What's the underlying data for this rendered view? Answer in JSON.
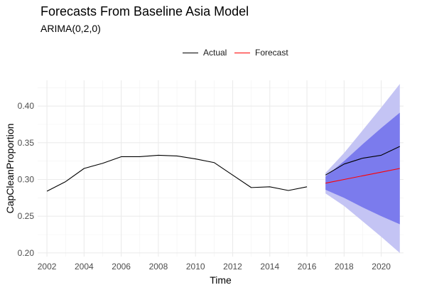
{
  "chart_data": {
    "type": "line",
    "title": "Forecasts From Baseline Asia Model",
    "subtitle": "ARIMA(0,2,0)",
    "xlabel": "Time",
    "ylabel": "CapCleanProportion",
    "xlim": [
      2001.5,
      2021.2
    ],
    "ylim": [
      0.195,
      0.435
    ],
    "x_ticks": [
      2002,
      2004,
      2006,
      2008,
      2010,
      2012,
      2014,
      2016,
      2018,
      2020
    ],
    "y_ticks": [
      0.2,
      0.25,
      0.3,
      0.35,
      0.4
    ],
    "x_tick_labels": [
      "2002",
      "2004",
      "2006",
      "2008",
      "2010",
      "2012",
      "2014",
      "2016",
      "2018",
      "2020"
    ],
    "y_tick_labels": [
      "0.20",
      "0.25",
      "0.30",
      "0.35",
      "0.40"
    ],
    "grid": true,
    "legend_position": "top",
    "legend": [
      {
        "name": "Actual",
        "color": "#000000"
      },
      {
        "name": "Forecast",
        "color": "#ff0000"
      }
    ],
    "series": [
      {
        "name": "Actual",
        "color": "#000000",
        "segments": [
          {
            "x": [
              2002,
              2003,
              2004,
              2005,
              2006,
              2007,
              2008,
              2009,
              2010,
              2011,
              2012,
              2013,
              2014,
              2015,
              2016
            ],
            "y": [
              0.284,
              0.297,
              0.315,
              0.322,
              0.331,
              0.331,
              0.333,
              0.332,
              0.328,
              0.323,
              0.306,
              0.289,
              0.29,
              0.285,
              0.29
            ]
          },
          {
            "x": [
              2017,
              2018,
              2019,
              2020,
              2021
            ],
            "y": [
              0.306,
              0.321,
              0.329,
              0.333,
              0.345
            ]
          }
        ]
      },
      {
        "name": "Forecast",
        "color": "#ff0000",
        "x": [
          2017,
          2018,
          2019,
          2020,
          2021
        ],
        "y": [
          0.295,
          0.3,
          0.305,
          0.31,
          0.315
        ]
      }
    ],
    "intervals": [
      {
        "level": "95%",
        "color": "#c4c4f4",
        "x": [
          2017,
          2018,
          2019,
          2020,
          2021
        ],
        "lower": [
          0.281,
          0.264,
          0.243,
          0.222,
          0.2
        ],
        "upper": [
          0.309,
          0.336,
          0.367,
          0.398,
          0.43
        ]
      },
      {
        "level": "80%",
        "color": "#7b7bed",
        "x": [
          2017,
          2018,
          2019,
          2020,
          2021
        ],
        "lower": [
          0.286,
          0.275,
          0.262,
          0.25,
          0.239
        ],
        "upper": [
          0.304,
          0.325,
          0.348,
          0.37,
          0.391
        ]
      }
    ]
  }
}
